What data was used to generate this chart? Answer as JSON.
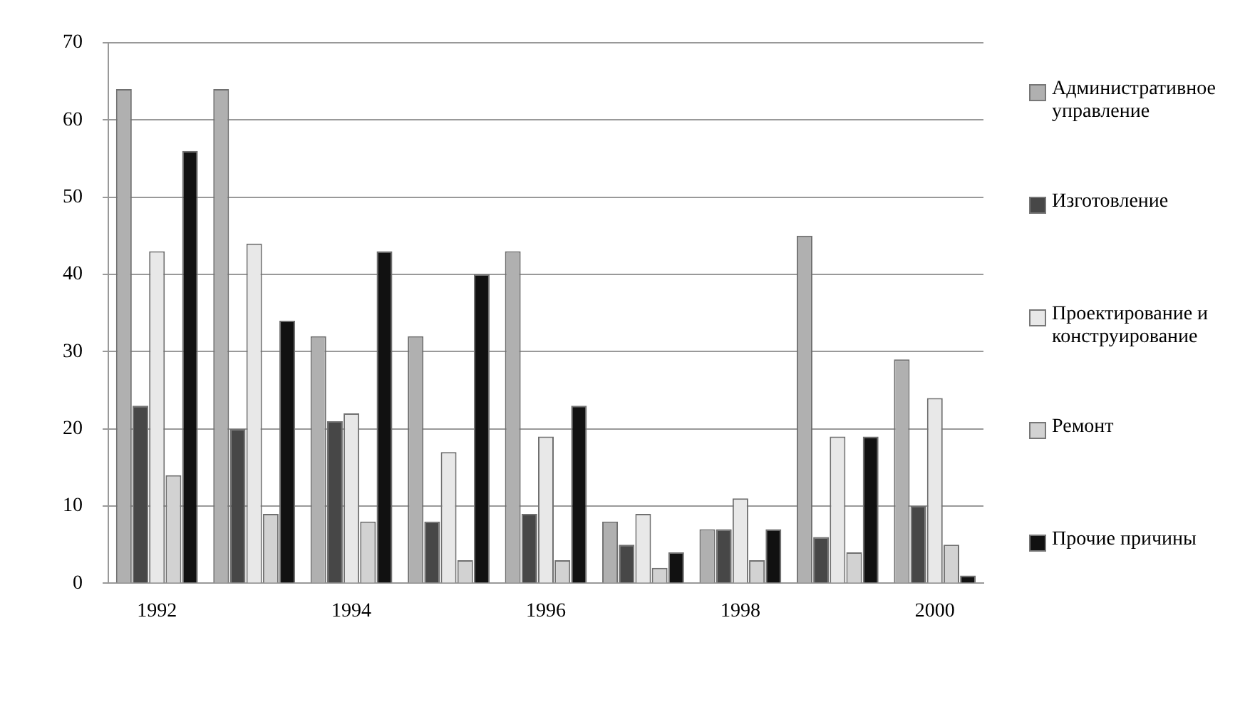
{
  "chart_data": {
    "type": "bar",
    "categories": [
      "1992",
      null,
      "1994",
      null,
      "1996",
      null,
      "1998",
      null,
      "2000"
    ],
    "series": [
      {
        "name": "Административное управление",
        "color": "#b0b0b0",
        "values": [
          64,
          64,
          32,
          32,
          43,
          8,
          7,
          45,
          29
        ]
      },
      {
        "name": "Изготовление",
        "color": "#474747",
        "values": [
          23,
          20,
          21,
          8,
          9,
          5,
          7,
          6,
          10
        ]
      },
      {
        "name": "Проектирование и конструирование",
        "color": "#e8e8e8",
        "values": [
          43,
          44,
          22,
          17,
          19,
          9,
          11,
          19,
          24
        ]
      },
      {
        "name": "Ремонт",
        "color": "#d2d2d2",
        "values": [
          14,
          9,
          8,
          3,
          3,
          2,
          3,
          4,
          5
        ]
      },
      {
        "name": "Прочие причины",
        "color": "#111111",
        "values": [
          56,
          34,
          43,
          40,
          23,
          4,
          7,
          19,
          1
        ]
      }
    ],
    "ylim": [
      0,
      70
    ],
    "yticks": [
      0,
      10,
      20,
      30,
      40,
      50,
      60,
      70
    ],
    "grid": "y",
    "legend": "right"
  }
}
